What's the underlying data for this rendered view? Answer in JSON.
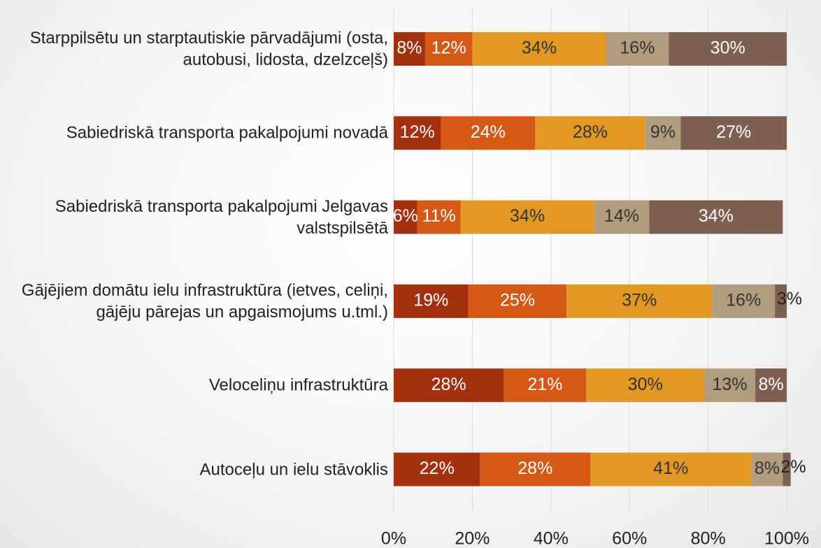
{
  "chart_data": {
    "type": "stacked_barh",
    "categories": [
      "Starppilsētu un starptautiskie pārvadājumi (osta, autobusi, lidosta, dzelzceļš)",
      "Sabiedriskā transporta pakalpojumi novadā",
      "Sabiedriskā transporta pakalpojumi Jelgavas valstspilsētā",
      "Gājējiem domātu ielu infrastruktūra (ietves, celiņi, gājēju pārejas un apgaismojums u.tml.)",
      "Veloceliņu infrastruktūra",
      "Autoceļu un ielu stāvoklis"
    ],
    "series": [
      {
        "color": "#a5300f",
        "label_color": "#ffffff",
        "values": [
          8,
          12,
          6,
          19,
          28,
          22
        ],
        "value_labels": [
          "8%",
          "12%",
          "6%",
          "19%",
          "28%",
          "22%"
        ]
      },
      {
        "color": "#d55816",
        "label_color": "#ffffff",
        "values": [
          12,
          24,
          11,
          25,
          21,
          28
        ],
        "value_labels": [
          "12%",
          "24%",
          "11%",
          "25%",
          "21%",
          "28%"
        ]
      },
      {
        "color": "#e19825",
        "label_color": "#333333",
        "values": [
          34,
          28,
          34,
          37,
          30,
          41
        ],
        "value_labels": [
          "34%",
          "28%",
          "34%",
          "37%",
          "30%",
          "41%"
        ]
      },
      {
        "color": "#b19c7d",
        "label_color": "#333333",
        "values": [
          16,
          9,
          14,
          16,
          13,
          8
        ],
        "value_labels": [
          "16%",
          "9%",
          "14%",
          "16%",
          "13%",
          "8%"
        ]
      },
      {
        "color": "#7f5f52",
        "label_color": "#ffffff",
        "values": [
          30,
          27,
          34,
          3,
          8,
          2
        ],
        "value_labels": [
          "30%",
          "27%",
          "34%",
          "3%",
          "8%",
          "2%"
        ]
      }
    ],
    "xlim": [
      0,
      100
    ],
    "xticks": [
      {
        "value": 0,
        "label": "0%"
      },
      {
        "value": 20,
        "label": "20%"
      },
      {
        "value": 40,
        "label": "40%"
      },
      {
        "value": 60,
        "label": "60%"
      },
      {
        "value": 80,
        "label": "80%"
      },
      {
        "value": 100,
        "label": "100%"
      }
    ],
    "grid": true
  }
}
